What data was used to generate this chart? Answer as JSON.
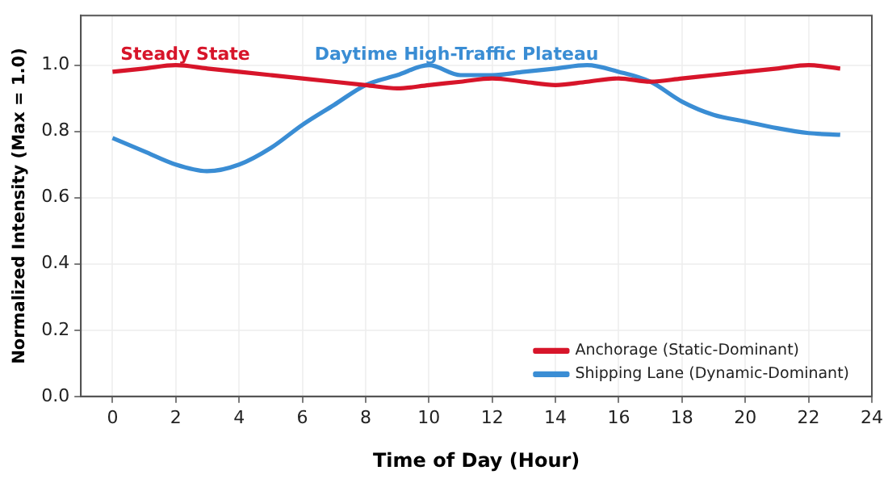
{
  "chart_data": {
    "type": "line",
    "xlabel": "Time of Day (Hour)",
    "ylabel": "Normalized Intensity (Max = 1.0)",
    "x": [
      0,
      1,
      2,
      3,
      4,
      5,
      6,
      7,
      8,
      9,
      10,
      11,
      12,
      13,
      14,
      15,
      16,
      17,
      18,
      19,
      20,
      21,
      22,
      23
    ],
    "series": [
      {
        "name": "Anchorage (Static-Dominant)",
        "color": "#d7152a",
        "values": [
          0.98,
          0.99,
          1.0,
          0.99,
          0.98,
          0.97,
          0.96,
          0.95,
          0.94,
          0.93,
          0.94,
          0.95,
          0.96,
          0.95,
          0.94,
          0.95,
          0.96,
          0.95,
          0.96,
          0.97,
          0.98,
          0.99,
          1.0,
          0.99
        ]
      },
      {
        "name": "Shipping Lane (Dynamic-Dominant)",
        "color": "#3a8dd4",
        "values": [
          0.78,
          0.74,
          0.7,
          0.68,
          0.7,
          0.75,
          0.82,
          0.88,
          0.94,
          0.97,
          1.0,
          0.97,
          0.97,
          0.98,
          0.99,
          1.0,
          0.98,
          0.95,
          0.89,
          0.85,
          0.83,
          0.81,
          0.795,
          0.79
        ]
      }
    ],
    "annotations": [
      "Steady State",
      "Daytime High-Traffic Plateau"
    ],
    "xlim": [
      -1,
      24
    ],
    "xticks": [
      0,
      2,
      4,
      6,
      8,
      10,
      12,
      14,
      16,
      18,
      20,
      22,
      24
    ],
    "ylim": [
      0,
      1.15
    ],
    "yticks": [
      {
        "value": 0,
        "label": "0.0"
      },
      {
        "value": 0.2,
        "label": "0.2"
      },
      {
        "value": 0.4,
        "label": "0.4"
      },
      {
        "value": 0.6,
        "label": "0.6"
      },
      {
        "value": 0.8,
        "label": "0.8"
      },
      {
        "value": 1.0,
        "label": "1.0"
      }
    ],
    "grid": true,
    "legend": "bottom right",
    "marker": "none",
    "line_style": "solid"
  }
}
